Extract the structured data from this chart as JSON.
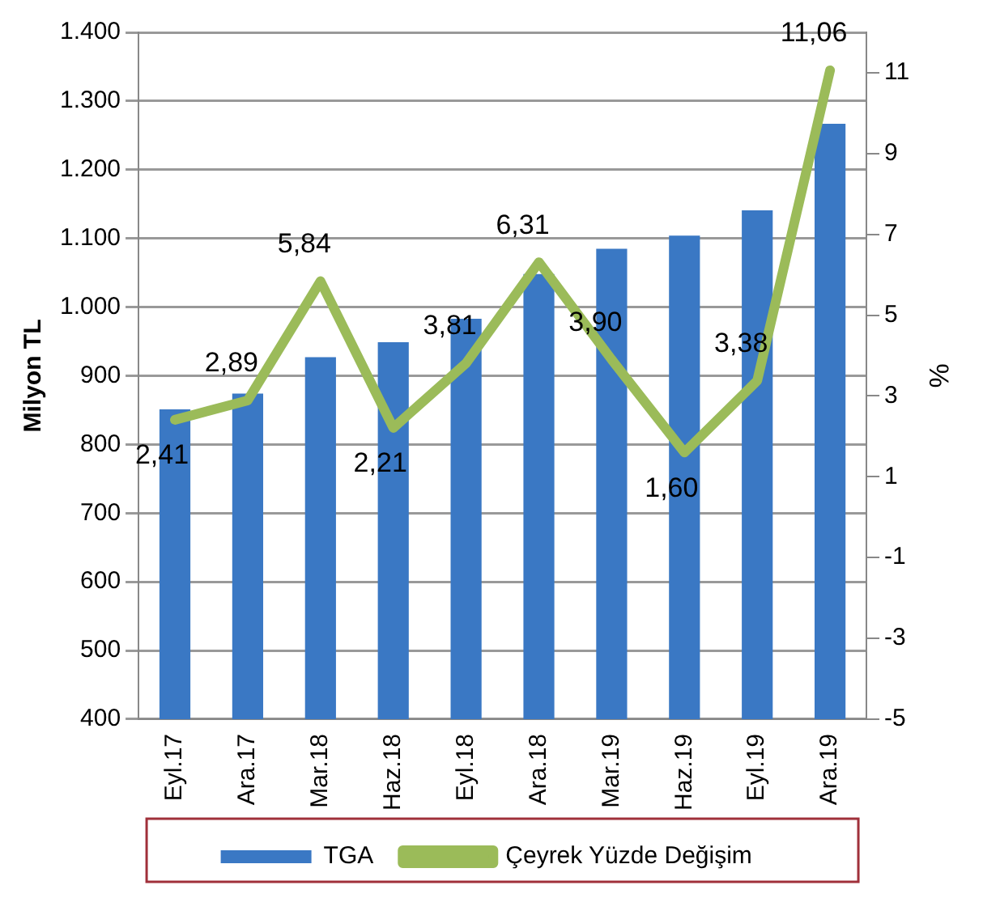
{
  "chart_data": {
    "type": "bar",
    "ylabel": "Milyon TL",
    "y2label": "%",
    "categories": [
      "Eyl.17",
      "Ara.17",
      "Mar.18",
      "Haz.18",
      "Eyl.18",
      "Ara.18",
      "Mar.19",
      "Haz.19",
      "Eyl.19",
      "Ara.19"
    ],
    "series": [
      {
        "name": "TGA",
        "color": "#3a78c4",
        "values": [
          851,
          874,
          927,
          949,
          983,
          1048,
          1085,
          1104,
          1141,
          1267
        ]
      },
      {
        "name": "Çeyrek Yüzde Değişim",
        "type": "line",
        "axis": "y2",
        "color": "#9bbb59",
        "values": [
          2.41,
          2.89,
          5.84,
          2.21,
          3.81,
          6.31,
          3.9,
          1.6,
          3.38,
          11.06
        ],
        "value_labels": [
          "2,41",
          "2,89",
          "5,84",
          "2,21",
          "3,81",
          "6,31",
          "3,90",
          "1,60",
          "3,38",
          "11,06"
        ]
      }
    ],
    "ylim": [
      400,
      1400
    ],
    "yticks": [
      {
        "value": 400,
        "label": "400"
      },
      {
        "value": 500,
        "label": "500"
      },
      {
        "value": 600,
        "label": "600"
      },
      {
        "value": 700,
        "label": "700"
      },
      {
        "value": 800,
        "label": "800"
      },
      {
        "value": 900,
        "label": "900"
      },
      {
        "value": 1000,
        "label": "1.000"
      },
      {
        "value": 1100,
        "label": "1.100"
      },
      {
        "value": 1200,
        "label": "1.200"
      },
      {
        "value": 1300,
        "label": "1.300"
      },
      {
        "value": 1400,
        "label": "1.400"
      }
    ],
    "y2lim": [
      -5,
      12
    ],
    "y2ticks": [
      -5,
      -3,
      -1,
      1,
      3,
      5,
      7,
      9,
      11
    ],
    "grid": "y",
    "legend": "bottom",
    "marker": "none",
    "line_style": "solid"
  }
}
